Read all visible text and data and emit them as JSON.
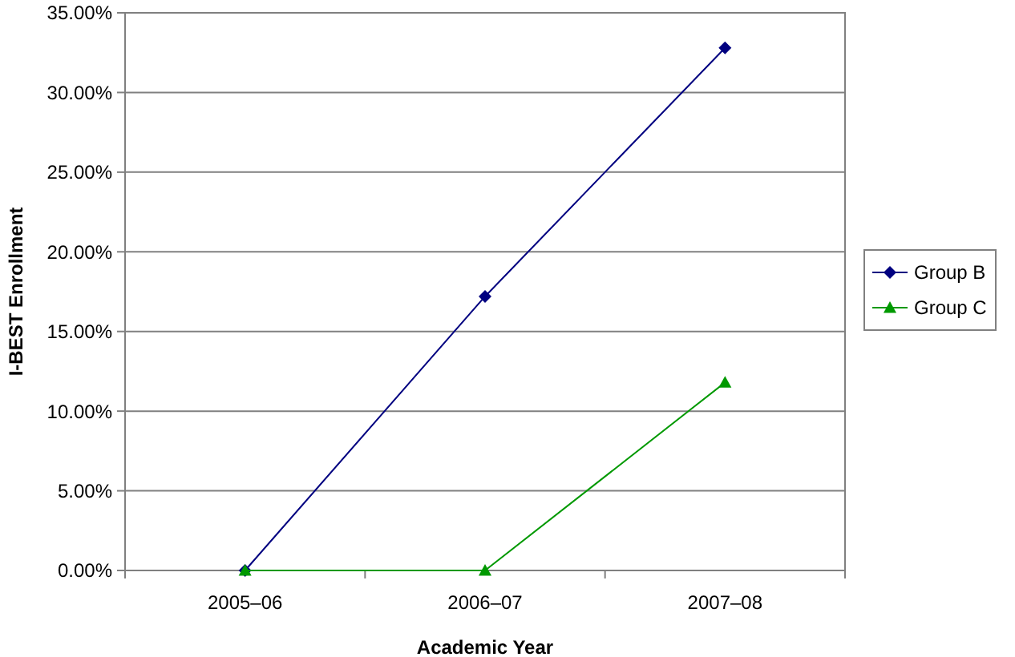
{
  "chart_data": {
    "type": "line",
    "xlabel": "Academic Year",
    "ylabel": "I-BEST Enrollment",
    "categories": [
      "2005–06",
      "2006–07",
      "2007–08"
    ],
    "series": [
      {
        "name": "Group B",
        "color": "#000080",
        "values": [
          0,
          17.2,
          32.8
        ],
        "marker": "diamond"
      },
      {
        "name": "Group C",
        "color": "#009900",
        "values": [
          0,
          0,
          11.8
        ],
        "marker": "triangle"
      }
    ],
    "ylim": [
      0,
      35
    ],
    "yticks": [
      {
        "value": 0,
        "label": "0.00%"
      },
      {
        "value": 5,
        "label": "5.00%"
      },
      {
        "value": 10,
        "label": "10.00%"
      },
      {
        "value": 15,
        "label": "15.00%"
      },
      {
        "value": 20,
        "label": "20.00%"
      },
      {
        "value": 25,
        "label": "25.00%"
      },
      {
        "value": 30,
        "label": "30.00%"
      },
      {
        "value": 35,
        "label": "35.00%"
      }
    ],
    "grid": "y",
    "legend": "right"
  }
}
